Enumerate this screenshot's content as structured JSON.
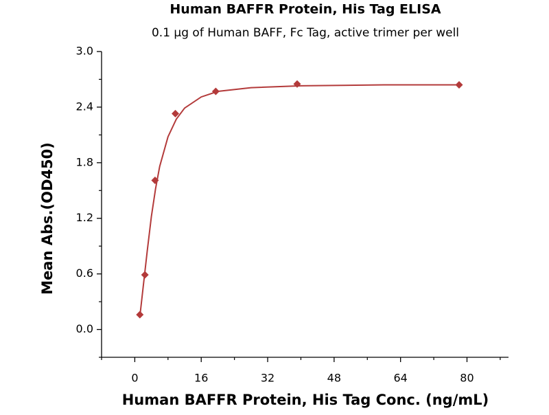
{
  "chart_data": {
    "type": "scatter",
    "title": "Human BAFFR Protein, His Tag ELISA",
    "subtitle": "0.1 µg of Human BAFF, Fc Tag, active trimer per well",
    "x_label": "Human BAFFR Protein, His Tag Conc. (ng/mL)",
    "y_label": "Mean Abs.(OD450)",
    "points": {
      "color": "#b33a3a",
      "x": [
        1.22,
        2.44,
        4.88,
        9.77,
        19.5,
        39.1,
        78.1
      ],
      "values": [
        0.16,
        0.59,
        1.61,
        2.33,
        2.57,
        2.65,
        2.64
      ]
    },
    "fit": {
      "type": "line",
      "color": "#b33a3a",
      "x": [
        1.22,
        2,
        3,
        4,
        5,
        6,
        8,
        10,
        12,
        16,
        20,
        28,
        40,
        60,
        78.1
      ],
      "values": [
        0.14,
        0.45,
        0.85,
        1.22,
        1.52,
        1.76,
        2.08,
        2.27,
        2.39,
        2.51,
        2.57,
        2.61,
        2.63,
        2.64,
        2.64
      ]
    },
    "xlim": [
      -8,
      90
    ],
    "ylim": [
      -0.3,
      3.0
    ],
    "xticks": [
      0,
      16,
      32,
      48,
      64,
      80
    ],
    "yticks": [
      {
        "value": 0,
        "label": "0.0"
      },
      0.6,
      1.2,
      1.8,
      2.4,
      {
        "value": 3,
        "label": "3.0"
      }
    ],
    "xminorticks": [
      -8,
      8,
      24,
      40,
      56,
      72,
      88
    ],
    "yminorticks": [
      -0.3,
      0.3,
      0.9,
      1.5,
      2.1,
      2.7
    ]
  }
}
